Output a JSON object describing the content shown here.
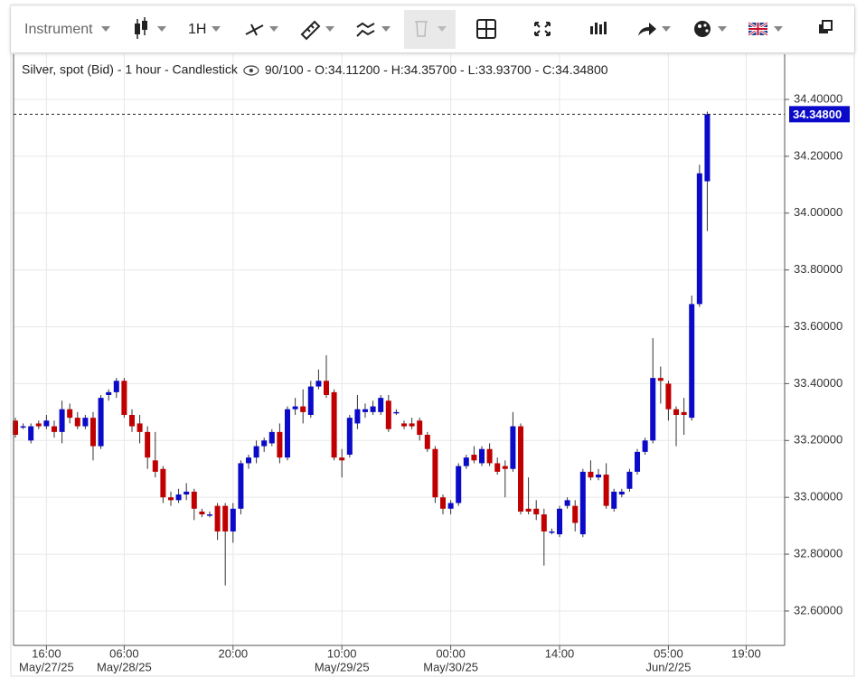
{
  "toolbar": {
    "instrument": "Instrument",
    "interval": "1H"
  },
  "chart_data": {
    "type": "candlestick",
    "title": "Silver, spot (Bid) - 1 hour - Candlestick",
    "count": "90/100",
    "info": [
      "O:34.11200",
      "H:34.35700",
      "L:33.93700",
      "C:34.34800"
    ],
    "up_color": "#0a0ac8",
    "down_color": "#c00000",
    "x": [
      0,
      1,
      2,
      3,
      4,
      5,
      6,
      7,
      8,
      9,
      10,
      11,
      12,
      13,
      14,
      15,
      16,
      17,
      18,
      19,
      20,
      21,
      22,
      23,
      24,
      25,
      26,
      27,
      28,
      29,
      30,
      31,
      32,
      33,
      34,
      35,
      36,
      37,
      38,
      39,
      40,
      41,
      42,
      43,
      44,
      45,
      46,
      47,
      48,
      49,
      50,
      51,
      52,
      53,
      54,
      55,
      56,
      57,
      58,
      59,
      60,
      61,
      62,
      63,
      64,
      65,
      66,
      67,
      68,
      69,
      70,
      71,
      72,
      73,
      74,
      75,
      76,
      77,
      78,
      79,
      80,
      81,
      82,
      83,
      84,
      85,
      86,
      87,
      88,
      89
    ],
    "open": [
      33.27,
      33.25,
      33.2,
      33.26,
      33.25,
      33.25,
      33.23,
      33.31,
      33.28,
      33.25,
      33.28,
      33.18,
      33.36,
      33.37,
      33.41,
      33.29,
      33.26,
      33.23,
      33.13,
      33.1,
      33.0,
      32.99,
      33.01,
      33.02,
      32.95,
      32.94,
      32.97,
      32.97,
      32.88,
      32.96,
      33.12,
      33.14,
      33.18,
      33.19,
      33.23,
      33.14,
      33.31,
      33.32,
      33.29,
      33.39,
      33.41,
      33.37,
      33.14,
      33.15,
      33.26,
      33.3,
      33.3,
      33.3,
      33.34,
      33.3,
      33.26,
      33.26,
      33.27,
      33.22,
      33.17,
      33.0,
      32.96,
      32.98,
      33.11,
      33.15,
      33.12,
      33.17,
      33.12,
      33.11,
      33.1,
      33.25,
      32.96,
      32.96,
      32.94,
      32.88,
      32.87,
      32.97,
      32.97,
      32.87,
      33.09,
      33.07,
      33.08,
      32.96,
      33.01,
      33.03,
      33.09,
      33.16,
      33.2,
      33.42,
      33.4,
      33.31,
      33.3,
      33.28,
      33.68,
      34.112
    ],
    "high": [
      33.28,
      33.26,
      33.26,
      33.27,
      33.29,
      33.27,
      33.34,
      33.33,
      33.3,
      33.29,
      33.3,
      33.36,
      33.38,
      33.42,
      33.42,
      33.31,
      33.29,
      33.25,
      33.23,
      33.11,
      33.02,
      33.03,
      33.05,
      33.03,
      32.96,
      32.95,
      32.98,
      32.98,
      32.98,
      33.13,
      33.15,
      33.2,
      33.21,
      33.24,
      33.26,
      33.32,
      33.35,
      33.38,
      33.41,
      33.45,
      33.5,
      33.38,
      33.17,
      33.29,
      33.36,
      33.33,
      33.34,
      33.36,
      33.36,
      33.31,
      33.27,
      33.28,
      33.28,
      33.23,
      33.18,
      33.01,
      32.99,
      33.12,
      33.15,
      33.18,
      33.18,
      33.19,
      33.14,
      33.13,
      33.3,
      33.26,
      33.07,
      32.99,
      32.96,
      32.89,
      32.97,
      33.0,
      32.99,
      33.1,
      33.13,
      33.1,
      33.12,
      33.03,
      33.03,
      33.1,
      33.17,
      33.21,
      33.56,
      33.46,
      33.41,
      33.32,
      33.35,
      33.71,
      34.17,
      34.357
    ],
    "low": [
      33.21,
      33.24,
      33.19,
      33.24,
      33.24,
      33.21,
      33.19,
      33.26,
      33.24,
      33.24,
      33.13,
      33.17,
      33.34,
      33.35,
      33.28,
      33.23,
      33.19,
      33.1,
      33.07,
      32.98,
      32.97,
      32.98,
      32.99,
      32.92,
      32.93,
      32.93,
      32.85,
      32.69,
      32.84,
      32.94,
      33.1,
      33.12,
      33.16,
      33.18,
      33.12,
      33.13,
      33.29,
      33.26,
      33.28,
      33.38,
      33.35,
      33.13,
      33.07,
      33.14,
      33.24,
      33.28,
      33.29,
      33.29,
      33.23,
      33.29,
      33.24,
      33.24,
      33.2,
      33.16,
      32.98,
      32.94,
      32.94,
      32.97,
      33.1,
      33.12,
      33.11,
      33.11,
      33.08,
      33.0,
      33.09,
      32.94,
      32.94,
      32.92,
      32.76,
      32.87,
      32.86,
      32.96,
      32.88,
      32.86,
      33.06,
      33.06,
      32.96,
      32.95,
      33.0,
      33.02,
      33.08,
      33.15,
      33.19,
      33.33,
      33.27,
      33.18,
      33.22,
      33.27,
      33.67,
      33.937
    ],
    "close": [
      33.22,
      33.25,
      33.25,
      33.25,
      33.27,
      33.23,
      33.31,
      33.28,
      33.25,
      33.28,
      33.18,
      33.35,
      33.37,
      33.41,
      33.29,
      33.25,
      33.23,
      33.14,
      33.09,
      33.0,
      32.99,
      33.01,
      33.02,
      32.96,
      32.94,
      32.94,
      32.88,
      32.88,
      32.96,
      33.12,
      33.14,
      33.18,
      33.2,
      33.23,
      33.14,
      33.31,
      33.32,
      33.3,
      33.39,
      33.41,
      33.36,
      33.14,
      33.13,
      33.28,
      33.31,
      33.31,
      33.32,
      33.35,
      33.24,
      33.3,
      33.25,
      33.25,
      33.22,
      33.17,
      33.0,
      32.96,
      32.98,
      33.11,
      33.14,
      33.13,
      33.17,
      33.12,
      33.09,
      33.1,
      33.25,
      32.95,
      32.95,
      32.94,
      32.88,
      32.88,
      32.96,
      32.99,
      32.91,
      33.09,
      33.07,
      33.08,
      32.97,
      33.02,
      33.02,
      33.09,
      33.16,
      33.2,
      33.42,
      33.41,
      33.31,
      33.29,
      33.29,
      33.68,
      34.14,
      34.348
    ],
    "xlim": [
      -0.23,
      98.95
    ],
    "xticks": [
      {
        "value": 4,
        "label": "16:00"
      },
      {
        "value": 14,
        "label": "06:00"
      },
      {
        "value": 28,
        "label": "20:00"
      },
      {
        "value": 42,
        "label": "10:00"
      },
      {
        "value": 56,
        "label": "00:00"
      },
      {
        "value": 70,
        "label": "14:00"
      },
      {
        "value": 84,
        "label": "05:00"
      },
      {
        "value": 94,
        "label": "19:00"
      }
    ],
    "xtick_dates": [
      {
        "value": 4,
        "label": "May/27/25"
      },
      {
        "value": 14,
        "label": "May/28/25"
      },
      {
        "value": 42,
        "label": "May/29/25"
      },
      {
        "value": 56,
        "label": "May/30/25"
      },
      {
        "value": 84,
        "label": "Jun/2/25"
      }
    ],
    "ylim": [
      32.479,
      34.559
    ],
    "yticks": [
      {
        "value": 32.6,
        "label": "32.60000"
      },
      {
        "value": 32.8,
        "label": "32.80000"
      },
      {
        "value": 33.0,
        "label": "33.00000"
      },
      {
        "value": 33.2,
        "label": "33.20000"
      },
      {
        "value": 33.4,
        "label": "33.40000"
      },
      {
        "value": 33.6,
        "label": "33.60000"
      },
      {
        "value": 33.8,
        "label": "33.80000"
      },
      {
        "value": 34.0,
        "label": "34.00000"
      },
      {
        "value": 34.2,
        "label": "34.20000"
      },
      {
        "value": 34.4,
        "label": "34.40000"
      }
    ],
    "last_price": {
      "value": 34.348,
      "label": "34.34800"
    },
    "grid": true
  }
}
